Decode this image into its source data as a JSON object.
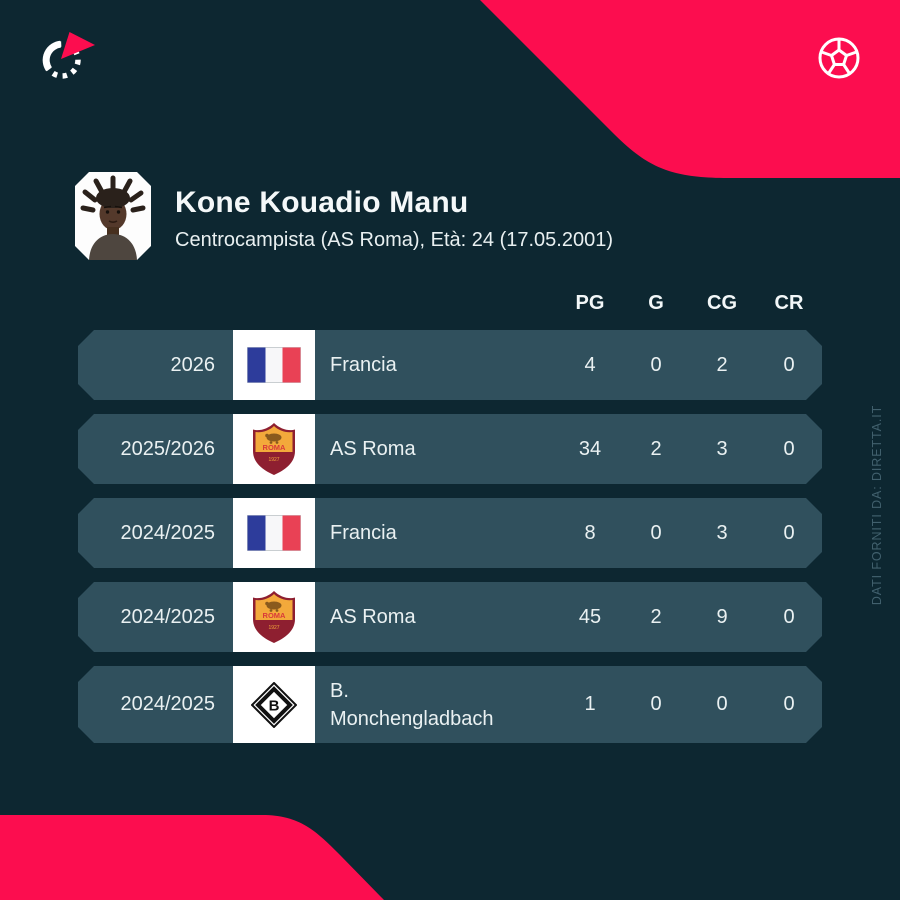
{
  "colors": {
    "background": "#0d2731",
    "accent_pink": "#fc0d4f",
    "row_background": "#30505d",
    "badge_cell": "#ffffff",
    "text": "#eaf1f2",
    "muted_watermark": "#41606d"
  },
  "branding": {
    "logo_icon": "flashscore-spinner-logo",
    "ball_icon": "soccer-ball",
    "watermark": "DATI FORNITI DA: DIRETTA.IT"
  },
  "player": {
    "name": "Kone Kouadio Manu",
    "details": "Centrocampista (AS Roma), Età: 24 (17.05.2001)",
    "photo": "player-portrait"
  },
  "stats_table": {
    "columns": [
      "PG",
      "G",
      "CG",
      "CR"
    ],
    "rows": [
      {
        "season": "2026",
        "badge": "france-flag",
        "team": "Francia",
        "values": [
          "4",
          "0",
          "2",
          "0"
        ]
      },
      {
        "season": "2025/2026",
        "badge": "as-roma-crest",
        "team": "AS Roma",
        "values": [
          "34",
          "2",
          "3",
          "0"
        ]
      },
      {
        "season": "2024/2025",
        "badge": "france-flag",
        "team": "Francia",
        "values": [
          "8",
          "0",
          "3",
          "0"
        ]
      },
      {
        "season": "2024/2025",
        "badge": "as-roma-crest",
        "team": "AS Roma",
        "values": [
          "45",
          "2",
          "9",
          "0"
        ]
      },
      {
        "season": "2024/2025",
        "badge": "gladbach-crest",
        "team": "B. Monchengladbach",
        "values": [
          "1",
          "0",
          "0",
          "0"
        ]
      }
    ]
  }
}
